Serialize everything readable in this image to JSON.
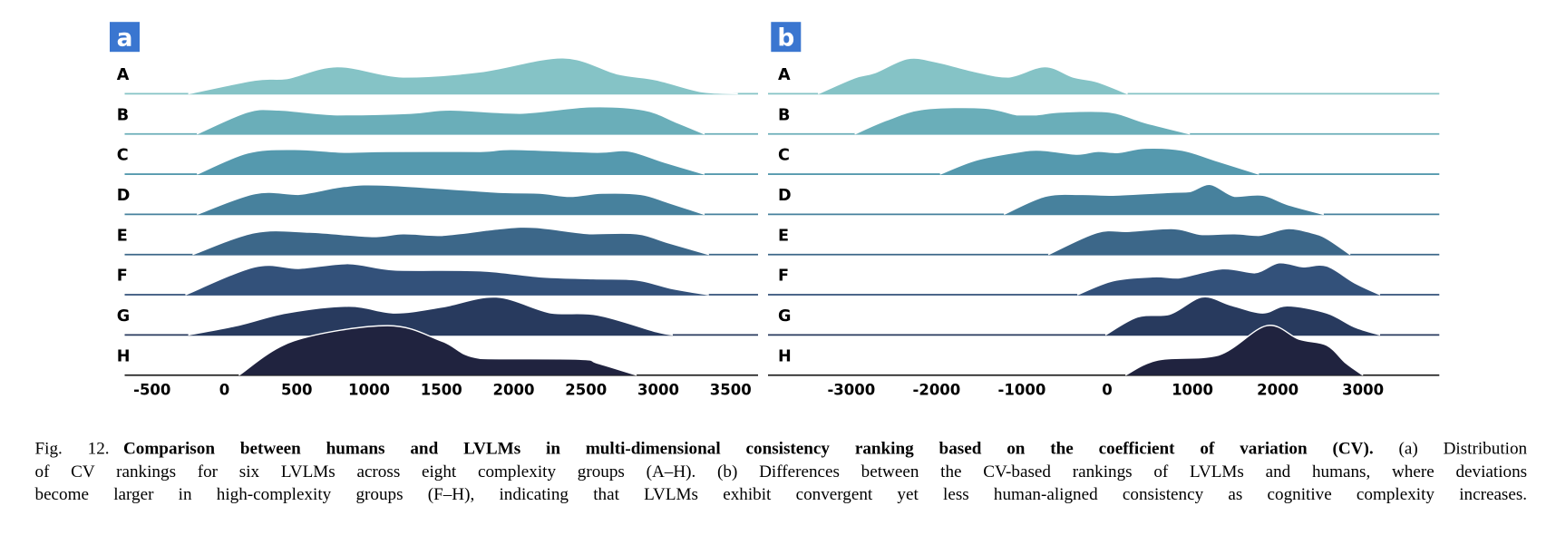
{
  "chart_data": [
    {
      "type": "ridgeline",
      "panel_label": "a",
      "x_ticks": [
        -500,
        0,
        500,
        1000,
        1500,
        2000,
        2500,
        3000,
        3500
      ],
      "xlim": [
        -700,
        3700
      ],
      "grid": false,
      "series": [
        {
          "name": "A",
          "color": "#85c3c6",
          "points": [
            [
              -250,
              0
            ],
            [
              210,
              0.34
            ],
            [
              430,
              0.38
            ],
            [
              780,
              0.68
            ],
            [
              1235,
              0.42
            ],
            [
              1770,
              0.55
            ],
            [
              2340,
              0.9
            ],
            [
              2715,
              0.5
            ],
            [
              2985,
              0.35
            ],
            [
              3300,
              0.05
            ],
            [
              3550,
              0
            ]
          ]
        },
        {
          "name": "B",
          "color": "#6aaeb9",
          "points": [
            [
              -190,
              0
            ],
            [
              160,
              0.55
            ],
            [
              375,
              0.6
            ],
            [
              780,
              0.48
            ],
            [
              1290,
              0.52
            ],
            [
              1560,
              0.6
            ],
            [
              2040,
              0.52
            ],
            [
              2525,
              0.68
            ],
            [
              2900,
              0.6
            ],
            [
              3120,
              0.3
            ],
            [
              3320,
              0
            ]
          ]
        },
        {
          "name": "C",
          "color": "#5599ae",
          "points": [
            [
              -190,
              0
            ],
            [
              160,
              0.53
            ],
            [
              480,
              0.62
            ],
            [
              830,
              0.55
            ],
            [
              1130,
              0.57
            ],
            [
              1770,
              0.57
            ],
            [
              1990,
              0.62
            ],
            [
              2580,
              0.55
            ],
            [
              2795,
              0.58
            ],
            [
              3040,
              0.3
            ],
            [
              3320,
              0
            ]
          ]
        },
        {
          "name": "D",
          "color": "#47819d",
          "points": [
            [
              -190,
              0
            ],
            [
              210,
              0.52
            ],
            [
              510,
              0.5
            ],
            [
              830,
              0.7
            ],
            [
              1130,
              0.73
            ],
            [
              1910,
              0.55
            ],
            [
              2180,
              0.53
            ],
            [
              2390,
              0.45
            ],
            [
              2610,
              0.53
            ],
            [
              2880,
              0.5
            ],
            [
              3065,
              0.3
            ],
            [
              3320,
              0
            ]
          ]
        },
        {
          "name": "E",
          "color": "#3c6789",
          "points": [
            [
              -220,
              0
            ],
            [
              210,
              0.55
            ],
            [
              590,
              0.56
            ],
            [
              1020,
              0.45
            ],
            [
              1235,
              0.52
            ],
            [
              1505,
              0.48
            ],
            [
              1910,
              0.65
            ],
            [
              2150,
              0.68
            ],
            [
              2525,
              0.52
            ],
            [
              2850,
              0.52
            ],
            [
              3065,
              0.3
            ],
            [
              3350,
              0
            ]
          ]
        },
        {
          "name": "F",
          "color": "#33517a",
          "points": [
            [
              -270,
              0
            ],
            [
              210,
              0.7
            ],
            [
              510,
              0.66
            ],
            [
              860,
              0.78
            ],
            [
              1180,
              0.62
            ],
            [
              1770,
              0.6
            ],
            [
              2180,
              0.45
            ],
            [
              2550,
              0.4
            ],
            [
              2850,
              0.37
            ],
            [
              3100,
              0.15
            ],
            [
              3350,
              0
            ]
          ]
        },
        {
          "name": "G",
          "color": "#283a5e",
          "points": [
            [
              -250,
              0
            ],
            [
              105,
              0.25
            ],
            [
              430,
              0.55
            ],
            [
              860,
              0.72
            ],
            [
              1180,
              0.55
            ],
            [
              1505,
              0.7
            ],
            [
              1880,
              0.95
            ],
            [
              2260,
              0.55
            ],
            [
              2580,
              0.5
            ],
            [
              2985,
              0.08
            ],
            [
              3100,
              0
            ]
          ]
        },
        {
          "name": "H",
          "color": "#20233f",
          "points": [
            [
              100,
              0
            ],
            [
              480,
              0.86
            ],
            [
              1130,
              1.24
            ],
            [
              1505,
              0.85
            ],
            [
              1770,
              0.42
            ],
            [
              2450,
              0.4
            ],
            [
              2580,
              0.3
            ],
            [
              2850,
              0
            ]
          ]
        }
      ]
    },
    {
      "type": "ridgeline",
      "panel_label": "b",
      "x_ticks": [
        -3000,
        -2000,
        -1000,
        0,
        1000,
        2000,
        3000
      ],
      "xlim": [
        -3950,
        3900
      ],
      "grid": false,
      "series": [
        {
          "name": "A",
          "color": "#85c3c6",
          "points": [
            [
              -3390,
              0
            ],
            [
              -2960,
              0.4
            ],
            [
              -2720,
              0.53
            ],
            [
              -2340,
              0.88
            ],
            [
              -2010,
              0.8
            ],
            [
              -1540,
              0.55
            ],
            [
              -1160,
              0.42
            ],
            [
              -730,
              0.68
            ],
            [
              -400,
              0.42
            ],
            [
              -120,
              0.3
            ],
            [
              240,
              0
            ]
          ]
        },
        {
          "name": "B",
          "color": "#6aaeb9",
          "points": [
            [
              -2960,
              0
            ],
            [
              -2580,
              0.35
            ],
            [
              -2150,
              0.62
            ],
            [
              -1440,
              0.65
            ],
            [
              -1060,
              0.48
            ],
            [
              -830,
              0.48
            ],
            [
              -540,
              0.55
            ],
            [
              25,
              0.55
            ],
            [
              450,
              0.28
            ],
            [
              970,
              0
            ]
          ]
        },
        {
          "name": "C",
          "color": "#5599ae",
          "points": [
            [
              -1960,
              0
            ],
            [
              -1540,
              0.35
            ],
            [
              -1060,
              0.55
            ],
            [
              -780,
              0.6
            ],
            [
              -350,
              0.5
            ],
            [
              -120,
              0.57
            ],
            [
              120,
              0.54
            ],
            [
              450,
              0.65
            ],
            [
              880,
              0.6
            ],
            [
              1260,
              0.35
            ],
            [
              1780,
              0
            ]
          ]
        },
        {
          "name": "D",
          "color": "#47819d",
          "points": [
            [
              -1210,
              0
            ],
            [
              -730,
              0.45
            ],
            [
              -310,
              0.5
            ],
            [
              70,
              0.48
            ],
            [
              735,
              0.55
            ],
            [
              970,
              0.57
            ],
            [
              1210,
              0.75
            ],
            [
              1495,
              0.45
            ],
            [
              1825,
              0.48
            ],
            [
              2110,
              0.25
            ],
            [
              2540,
              0
            ]
          ]
        },
        {
          "name": "E",
          "color": "#3c6789",
          "points": [
            [
              -690,
              0
            ],
            [
              -120,
              0.55
            ],
            [
              260,
              0.58
            ],
            [
              780,
              0.65
            ],
            [
              1115,
              0.5
            ],
            [
              1495,
              0.52
            ],
            [
              1780,
              0.48
            ],
            [
              2110,
              0.65
            ],
            [
              2390,
              0.55
            ],
            [
              2575,
              0.4
            ],
            [
              2850,
              0
            ]
          ]
        },
        {
          "name": "F",
          "color": "#33517a",
          "points": [
            [
              -350,
              0
            ],
            [
              70,
              0.35
            ],
            [
              545,
              0.45
            ],
            [
              830,
              0.42
            ],
            [
              1350,
              0.65
            ],
            [
              1730,
              0.55
            ],
            [
              2015,
              0.8
            ],
            [
              2300,
              0.7
            ],
            [
              2575,
              0.72
            ],
            [
              2900,
              0.3
            ],
            [
              3200,
              0
            ]
          ]
        },
        {
          "name": "G",
          "color": "#283a5e",
          "points": [
            [
              -20,
              0
            ],
            [
              355,
              0.45
            ],
            [
              735,
              0.52
            ],
            [
              1115,
              0.95
            ],
            [
              1445,
              0.75
            ],
            [
              1825,
              0.55
            ],
            [
              2110,
              0.73
            ],
            [
              2575,
              0.55
            ],
            [
              2900,
              0.2
            ],
            [
              3200,
              0
            ]
          ]
        },
        {
          "name": "H",
          "color": "#20233f",
          "points": [
            [
              215,
              0
            ],
            [
              595,
              0.38
            ],
            [
              1305,
              0.5
            ],
            [
              1870,
              1.24
            ],
            [
              2250,
              0.9
            ],
            [
              2575,
              0.75
            ],
            [
              2800,
              0.3
            ],
            [
              3000,
              0
            ]
          ]
        }
      ]
    }
  ],
  "caption": {
    "label": "Fig. 12.",
    "title": "Comparison between humans and LVLMs in multi-dimensional consistency ranking based on the coefficient of variation (CV).",
    "line1_rest": "(a) Distribution",
    "line2": "of CV rankings for six LVLMs across eight complexity groups (A–H). (b) Differences between the CV-based rankings of LVLMs and humans, where deviations",
    "line3": "become larger in high-complexity groups (F–H), indicating that LVLMs exhibit convergent yet less human-aligned consistency as cognitive complexity increases."
  }
}
